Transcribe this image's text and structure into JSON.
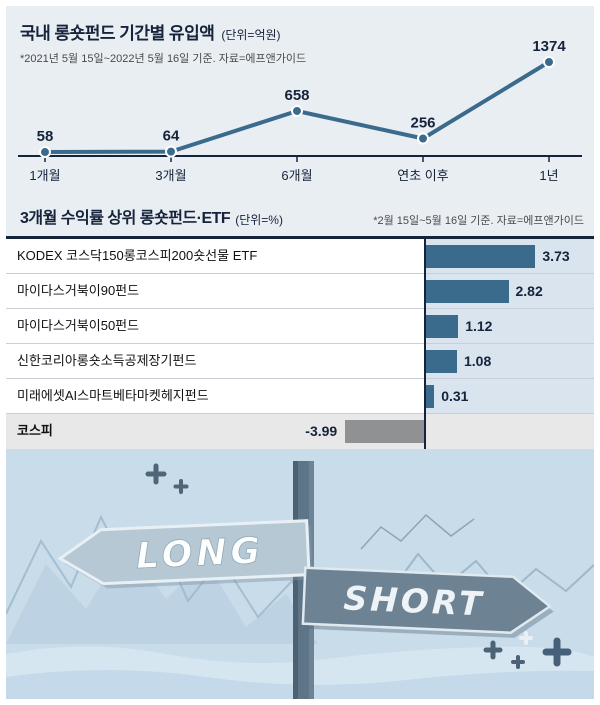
{
  "colors": {
    "accent": "#3a6b8c",
    "navy": "#15233b",
    "negative_bar": "#8f9193",
    "bar_zone_bg": "#d9e4ee",
    "section_bg": "#e9eef3",
    "illustration_bg": "#c9dcea"
  },
  "chart_data": [
    {
      "type": "line",
      "title": "국내 롱숏펀드 기간별 유입액",
      "unit_label": "(단위=억원)",
      "note": "*2021년 5월 15일~2022년 5월 16일 기준. 자료=에프앤가이드",
      "categories": [
        "1개월",
        "3개월",
        "6개월",
        "연초 이후",
        "1년"
      ],
      "values": [
        58,
        64,
        658,
        256,
        1374
      ],
      "ylim": [
        0,
        1450
      ],
      "grid": false,
      "value_labels_shown": true,
      "legend": "none"
    },
    {
      "type": "bar",
      "orientation": "horizontal",
      "title": "3개월 수익률 상위 롱숏펀드·ETF",
      "unit_label": "(단위=%)",
      "note": "*2월 15일~5월 16일 기준. 자료=에프앤가이드",
      "categories": [
        "KODEX 코스닥150롱코스피200숏선물 ETF",
        "마이다스거북이90펀드",
        "마이다스거북이50펀드",
        "신한코리아롱숏소득공제장기펀드",
        "미래에셋AI스마트베타마켓헤지펀드",
        "코스피"
      ],
      "values": [
        3.73,
        2.82,
        1.12,
        1.08,
        0.31,
        -3.99
      ],
      "value_labels_shown": true,
      "legend": "none"
    }
  ],
  "illustration": {
    "long_label": "LONG",
    "short_label": "SHORT"
  }
}
